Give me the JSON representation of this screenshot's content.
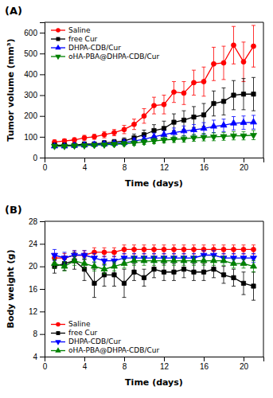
{
  "chart_data": [
    {
      "type": "line",
      "title": "(A)",
      "x_label": "Time (days)",
      "y_label": "Tumor volume (mm³)",
      "x": [
        1,
        2,
        3,
        4,
        5,
        6,
        7,
        8,
        9,
        10,
        11,
        12,
        13,
        14,
        15,
        16,
        17,
        18,
        19,
        20,
        21
      ],
      "xlim": [
        0,
        22
      ],
      "ylim": [
        0,
        650
      ],
      "xticks": [
        0,
        4,
        8,
        12,
        16,
        20
      ],
      "yticks": [
        0,
        100,
        200,
        300,
        400,
        500,
        600
      ],
      "grid": false,
      "legend": "upper left",
      "series": [
        {
          "name": "Saline",
          "color": "#FF0000",
          "marker": "circle",
          "values": [
            75,
            80,
            85,
            95,
            100,
            110,
            120,
            135,
            160,
            200,
            250,
            255,
            315,
            310,
            360,
            365,
            450,
            455,
            540,
            460,
            535
          ],
          "errors": [
            10,
            10,
            10,
            12,
            12,
            15,
            15,
            20,
            25,
            35,
            40,
            45,
            50,
            55,
            60,
            70,
            80,
            80,
            90,
            95,
            100
          ]
        },
        {
          "name": "free Cur",
          "color": "#000000",
          "marker": "square",
          "values": [
            60,
            60,
            60,
            65,
            65,
            70,
            75,
            80,
            95,
            110,
            130,
            140,
            170,
            180,
            195,
            205,
            260,
            270,
            300,
            305,
            305
          ],
          "errors": [
            8,
            8,
            8,
            10,
            10,
            12,
            12,
            15,
            18,
            22,
            28,
            35,
            40,
            45,
            50,
            55,
            60,
            65,
            70,
            75,
            80
          ]
        },
        {
          "name": "DHPA-CDB/Cur",
          "color": "#0000FF",
          "marker": "triangle-up",
          "values": [
            55,
            55,
            58,
            60,
            63,
            65,
            68,
            72,
            80,
            88,
            100,
            110,
            120,
            128,
            133,
            140,
            150,
            155,
            165,
            168,
            170
          ],
          "errors": [
            7,
            7,
            8,
            8,
            9,
            10,
            10,
            12,
            14,
            16,
            18,
            20,
            22,
            24,
            26,
            28,
            30,
            30,
            32,
            32,
            33
          ]
        },
        {
          "name": "oHA-PBA@DHPA-CDB/Cur",
          "color": "#008000",
          "marker": "triangle-down",
          "values": [
            55,
            55,
            57,
            58,
            60,
            62,
            64,
            67,
            70,
            75,
            80,
            85,
            88,
            90,
            95,
            98,
            100,
            102,
            105,
            105,
            108
          ],
          "errors": [
            7,
            7,
            7,
            8,
            8,
            8,
            9,
            10,
            11,
            12,
            13,
            14,
            15,
            16,
            17,
            18,
            19,
            19,
            20,
            20,
            22
          ]
        }
      ]
    },
    {
      "type": "line",
      "title": "(B)",
      "x_label": "Time (days)",
      "y_label": "Body weight (g)",
      "x": [
        1,
        2,
        3,
        4,
        5,
        6,
        7,
        8,
        9,
        10,
        11,
        12,
        13,
        14,
        15,
        16,
        17,
        18,
        19,
        20,
        21
      ],
      "xlim": [
        0,
        22
      ],
      "ylim": [
        4,
        28
      ],
      "xticks": [
        0,
        4,
        8,
        12,
        16,
        20
      ],
      "yticks": [
        4,
        8,
        12,
        16,
        20,
        24,
        28
      ],
      "grid": false,
      "legend": "lower left",
      "series": [
        {
          "name": "Saline",
          "color": "#FF0000",
          "marker": "circle",
          "values": [
            21.5,
            21.5,
            22,
            22,
            22.5,
            22.5,
            22.5,
            23,
            23,
            23,
            23,
            23,
            23,
            23,
            23,
            23,
            23,
            23,
            23,
            23,
            23
          ],
          "errors": [
            0.8,
            0.8,
            0.8,
            0.8,
            0.8,
            0.8,
            0.8,
            0.8,
            0.8,
            0.8,
            0.8,
            0.8,
            0.8,
            0.8,
            0.8,
            0.8,
            0.8,
            0.8,
            0.8,
            0.8,
            0.8
          ]
        },
        {
          "name": "free Cur",
          "color": "#000000",
          "marker": "square",
          "values": [
            20,
            20.5,
            21,
            19.5,
            17,
            18.5,
            18.5,
            17,
            19,
            18,
            19.5,
            19,
            19,
            19.5,
            19,
            19,
            19.5,
            18.5,
            18,
            17,
            16.5
          ],
          "errors": [
            1.2,
            1.2,
            1.5,
            2.0,
            2.5,
            2.0,
            2.0,
            2.5,
            1.5,
            1.5,
            1.5,
            1.5,
            1.5,
            1.5,
            1.5,
            1.5,
            1.5,
            1.5,
            1.5,
            2.0,
            2.5
          ]
        },
        {
          "name": "DHPA-CDB/Cur",
          "color": "#0000FF",
          "marker": "triangle-down",
          "values": [
            22,
            21.5,
            22,
            22,
            21.5,
            21,
            21,
            21.5,
            21.5,
            21.5,
            21.5,
            21.5,
            21.5,
            21.5,
            21.5,
            22,
            22,
            21.5,
            21.5,
            21.5,
            21.5
          ],
          "errors": [
            1.0,
            1.0,
            0.8,
            0.8,
            0.8,
            0.8,
            0.8,
            0.8,
            0.8,
            0.8,
            0.8,
            0.8,
            0.8,
            0.8,
            0.8,
            0.8,
            0.8,
            0.8,
            0.8,
            0.8,
            0.8
          ]
        },
        {
          "name": "oHA-PBA@DHPA-CDB/Cur",
          "color": "#008000",
          "marker": "triangle-up",
          "values": [
            20.5,
            20,
            21,
            20.5,
            20,
            19.5,
            20,
            20.5,
            21,
            21,
            21,
            21,
            21,
            21,
            21,
            21,
            21,
            21,
            20.5,
            20.5,
            20
          ],
          "errors": [
            0.8,
            0.8,
            0.8,
            0.8,
            0.8,
            0.8,
            0.8,
            0.8,
            0.8,
            0.8,
            0.8,
            0.8,
            0.8,
            0.8,
            0.8,
            0.8,
            0.8,
            0.8,
            0.8,
            0.8,
            1.0
          ]
        }
      ]
    }
  ]
}
